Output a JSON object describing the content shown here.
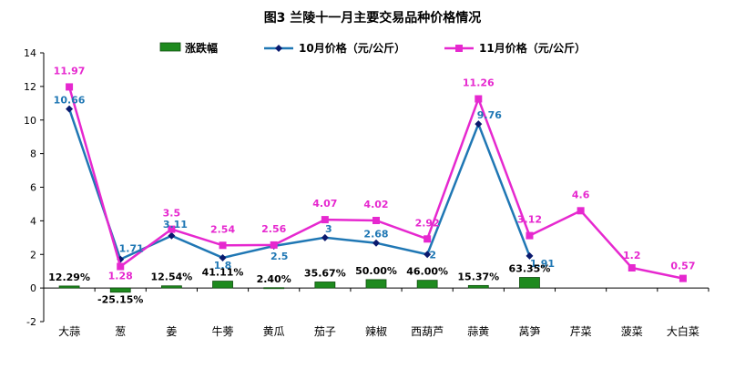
{
  "chart_data": {
    "type": "bar",
    "title": "图3  兰陵十一月主要交易品种价格情况",
    "xlabel": "",
    "ylabel": "",
    "ylim": [
      -2,
      14
    ],
    "yticks": [
      -2,
      0,
      2,
      4,
      6,
      8,
      10,
      12,
      14
    ],
    "grid": false,
    "legend_position": "top",
    "categories": [
      "大蒜",
      "葱",
      "姜",
      "牛蒡",
      "黄瓜",
      "茄子",
      "辣椒",
      "西葫芦",
      "蒜黄",
      "莴笋",
      "芹菜",
      "菠菜",
      "大白菜"
    ],
    "series": [
      {
        "name": "涨跌幅",
        "kind": "bar",
        "color": "#1e8a1e",
        "values": [
          0.12,
          -0.25,
          0.13,
          0.41,
          0.02,
          0.36,
          0.5,
          0.46,
          0.15,
          0.63,
          null,
          null,
          null
        ],
        "labels": [
          "12.29%",
          "-25.15%",
          "12.54%",
          "41.11%",
          "2.40%",
          "35.67%",
          "50.00%",
          "46.00%",
          "15.37%",
          "63.35%",
          "",
          "",
          ""
        ]
      },
      {
        "name": "10月价格（元/公斤）",
        "kind": "line",
        "color": "#1f77b4",
        "marker_color": "#0a1a6e",
        "values": [
          10.66,
          1.71,
          3.11,
          1.8,
          2.5,
          3,
          2.68,
          2,
          9.76,
          1.91,
          null,
          null,
          null
        ],
        "labels": [
          "10.66",
          "1.71",
          "3.11",
          "1.8",
          "2.5",
          "3",
          "2.68",
          "2",
          "9.76",
          "1.91",
          "",
          "",
          ""
        ]
      },
      {
        "name": "11月价格（元/公斤）",
        "kind": "line",
        "color": "#e628cf",
        "marker_color": "#e628cf",
        "values": [
          11.97,
          1.28,
          3.5,
          2.54,
          2.56,
          4.07,
          4.02,
          2.92,
          11.26,
          3.12,
          4.6,
          1.2,
          0.57
        ],
        "labels": [
          "11.97",
          "1.28",
          "3.5",
          "2.54",
          "2.56",
          "4.07",
          "4.02",
          "2.92",
          "11.26",
          "3.12",
          "4.6",
          "1.2",
          "0.57"
        ]
      }
    ]
  }
}
